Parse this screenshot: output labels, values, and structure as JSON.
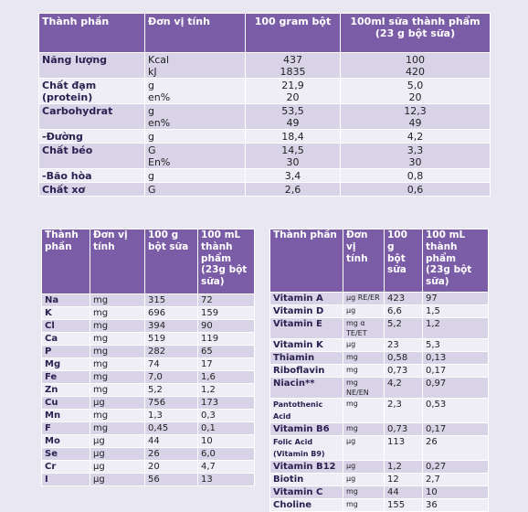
{
  "tables": [
    {
      "header": [
        "Thành phần",
        "Đơn vị tính",
        "100 gram bột",
        "100ml sữa thành phẩm\n(23 g bột sữa)"
      ],
      "rows": [
        [
          "Năng lượng",
          "Kcal\nkJ",
          "437\n1835",
          "100\n420"
        ],
        [
          "Chất đạm\n(protein)",
          "g\nen%",
          "21,9\n20",
          "5,0\n20"
        ],
        [
          "Carbohydrat",
          "g\nen%",
          "53,5\n49",
          "12,3\n49"
        ],
        [
          "-Đường",
          "g",
          "18,4",
          "4,2"
        ],
        [
          "Chất béo",
          "G\nEn%",
          "14,5\n30",
          "3,3\n30"
        ],
        [
          "-Bão hòa",
          "g",
          "3,4",
          "0,8"
        ],
        [
          "Chất xơ",
          "G",
          "2,6",
          "0,6"
        ]
      ]
    },
    {
      "header": [
        "Thành\nphần",
        "Đơn vị\ntính",
        "100 g\nbột sữa",
        "100 mL\nthành\nphẩm\n(23g bột\nsữa)"
      ],
      "rows": [
        [
          "Na",
          "mg",
          "315",
          "72"
        ],
        [
          "K",
          "mg",
          "696",
          "159"
        ],
        [
          "Cl",
          "mg",
          "394",
          "90"
        ],
        [
          "Ca",
          "mg",
          "519",
          "119"
        ],
        [
          "P",
          "mg",
          "282",
          "65"
        ],
        [
          "Mg",
          "mg",
          "74",
          "17"
        ],
        [
          "Fe",
          "mg",
          "7,0",
          "1,6"
        ],
        [
          "Zn",
          "mg",
          "5,2",
          "1,2"
        ],
        [
          "Cu",
          "µg",
          "756",
          "173"
        ],
        [
          "Mn",
          "mg",
          "1,3",
          "0,3"
        ],
        [
          "F",
          "mg",
          "0,45",
          "0,1"
        ],
        [
          "Mo",
          "µg",
          "44",
          "10"
        ],
        [
          "Se",
          "µg",
          "26",
          "6,0"
        ],
        [
          "Cr",
          "µg",
          "20",
          "4,7"
        ],
        [
          "I",
          "µg",
          "56",
          "13"
        ]
      ]
    },
    {
      "header": [
        "Thành phần",
        "Đơn\nvị\ntính",
        "100\ng\nbột\nsữa",
        "100 mL\nthành\nphẩm\n(23g bột\nsữa)"
      ],
      "rows": [
        [
          "Vitamin A",
          "µg RE/ER",
          "423",
          "97"
        ],
        [
          "Vitamin D",
          "µg",
          "6,6",
          "1,5"
        ],
        [
          "Vitamin E",
          "mg α\nTE/ET",
          "5,2",
          "1,2"
        ],
        [
          "Vitamin K",
          "µg",
          "23",
          "5,3"
        ],
        [
          "Thiamin",
          "mg",
          "0,58",
          "0,13"
        ],
        [
          "Riboflavin",
          "mg",
          "0,73",
          "0,17"
        ],
        [
          "Niacin**",
          "mg NE/EN",
          "4,2",
          "0,97"
        ],
        [
          "Pantothenic Acid",
          "mg",
          "2,3",
          "0,53"
        ],
        [
          "Vitamin B6",
          "mg",
          "0,73",
          "0,17"
        ],
        [
          "Folic Acid\n(Vitamin B9)",
          "µg",
          "113",
          "26"
        ],
        [
          "Vitamin B12",
          "µg",
          "1,2",
          "0,27"
        ],
        [
          "Biotin",
          "µg",
          "12",
          "2,7"
        ],
        [
          "Vitamin C",
          "mg",
          "44",
          "10"
        ],
        [
          "Choline",
          "mg",
          "155",
          "36"
        ]
      ]
    }
  ]
}
